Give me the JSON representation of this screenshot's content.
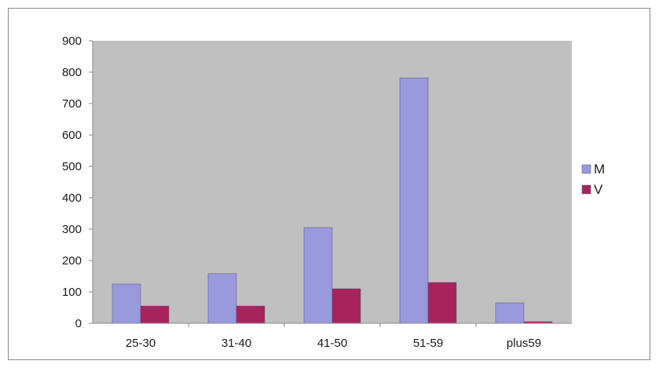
{
  "chart_data": {
    "type": "bar",
    "categories": [
      "25-30",
      "31-40",
      "41-50",
      "51-59",
      "plus59"
    ],
    "series": [
      {
        "name": "M",
        "values": [
          125,
          158,
          305,
          782,
          65
        ]
      },
      {
        "name": "V",
        "values": [
          55,
          55,
          110,
          130,
          5
        ]
      }
    ],
    "ylim": [
      0,
      900
    ],
    "y_ticks": [
      "0",
      "100",
      "200",
      "300",
      "400",
      "500",
      "600",
      "700",
      "800",
      "900"
    ],
    "grid": false,
    "legend_position": "right",
    "colors": {
      "plot_background": "#c0c0c0",
      "series": [
        "#9999dd",
        "#a8235c"
      ],
      "axis": "#8a8a8a"
    }
  }
}
